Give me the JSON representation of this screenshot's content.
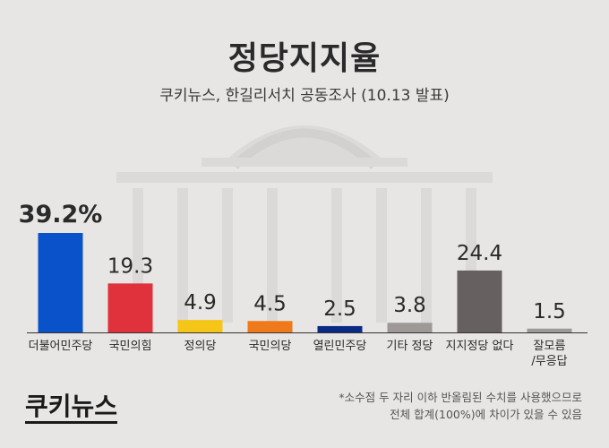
{
  "header": {
    "title": "정당지지율",
    "subtitle": "쿠키뉴스, 한길리서치 공동조사 (10.13 발표)"
  },
  "chart_data": {
    "type": "bar",
    "title": "정당지지율",
    "subtitle": "쿠키뉴스, 한길리서치 공동조사 (10.13 발표)",
    "categories": [
      "더불어민주당",
      "국민의힘",
      "정의당",
      "국민의당",
      "열린민주당",
      "기타 정당",
      "지지정당 없다",
      "잘모름/무응답"
    ],
    "category_lines": [
      [
        "더불어민주당"
      ],
      [
        "국민의힘"
      ],
      [
        "정의당"
      ],
      [
        "국민의당"
      ],
      [
        "열린민주당"
      ],
      [
        "기타 정당"
      ],
      [
        "지지정당 없다"
      ],
      [
        "잘모름",
        "/무응답"
      ]
    ],
    "values": [
      39.2,
      19.3,
      4.9,
      4.5,
      2.5,
      3.8,
      24.4,
      1.5
    ],
    "value_labels": [
      "39.2%",
      "19.3",
      "4.9",
      "4.5",
      "2.5",
      "3.8",
      "24.4",
      "1.5"
    ],
    "colors": [
      "#0a52c9",
      "#e0323c",
      "#f5c518",
      "#ee7a1b",
      "#0a2a85",
      "#9e9896",
      "#666060",
      "#9e9896"
    ],
    "ylim": [
      0,
      39.2
    ],
    "grid": false,
    "legend": "none"
  },
  "footer": {
    "logo": "쿠키뉴스",
    "note_line1": "*소수점 두 자리 이하 반올림된 수치를 사용했으므로",
    "note_line2": "전체 합계(100%)에 차이가 있을 수 있음"
  },
  "colors": {
    "background": "#e8e6e5",
    "axis": "#333333"
  }
}
